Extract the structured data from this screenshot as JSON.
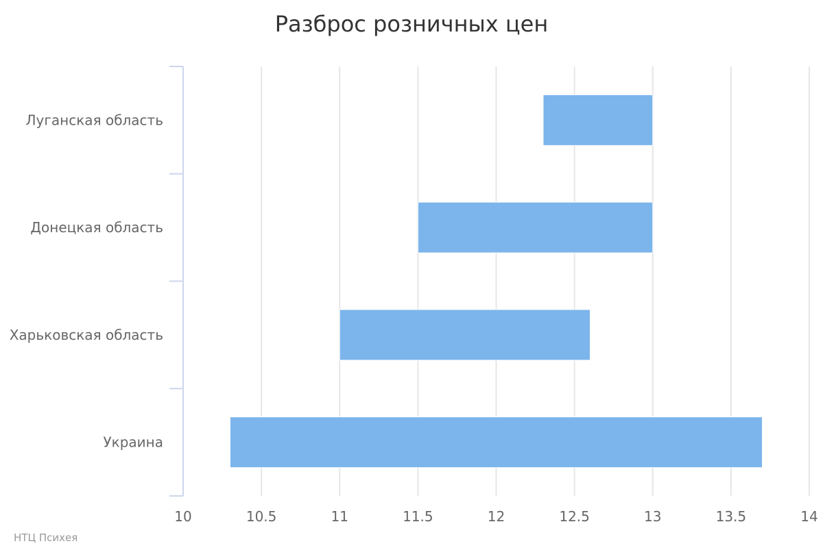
{
  "chart_data": {
    "type": "bar",
    "orientation": "horizontal",
    "variant": "range",
    "title": "Разброс розничных цен",
    "categories": [
      "Луганская область",
      "Донецкая область",
      "Харьковская область",
      "Украина"
    ],
    "series": [
      {
        "color": "#7cb5ec",
        "ranges": [
          [
            12.3,
            13.0
          ],
          [
            11.5,
            13.0
          ],
          [
            11.0,
            12.6
          ],
          [
            10.3,
            13.7
          ]
        ]
      }
    ],
    "xlim": [
      10,
      14
    ],
    "xticks": [
      "10",
      "10.5",
      "11",
      "11.5",
      "12",
      "12.5",
      "13",
      "13.5",
      "14"
    ],
    "grid": true,
    "legend": "none"
  },
  "credit": "НТЦ Психея"
}
